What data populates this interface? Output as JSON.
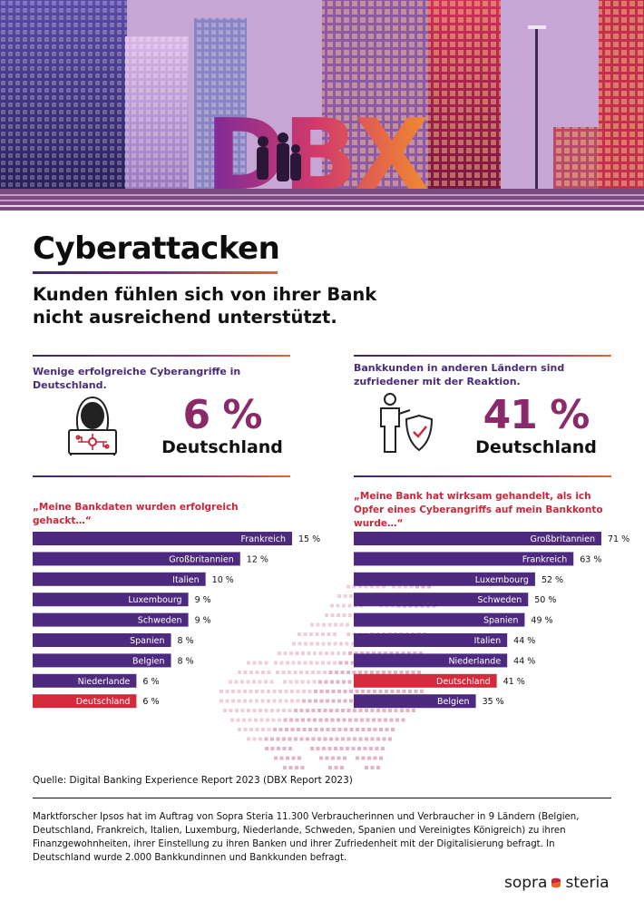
{
  "hero": {
    "logo_text": "DBX"
  },
  "title": "Cyberattacken",
  "subtitle": "Kunden fühlen sich von ihrer Bank nicht ausreichend unterstützt.",
  "left_panel": {
    "heading": "Wenige erfolgreiche Cyberangriffe in Deutschland.",
    "percent": "6 %",
    "country": "Deutschland",
    "icon": "hacker-icon",
    "quote": "„Meine Bankdaten wurden erfolgreich gehackt…“"
  },
  "right_panel": {
    "heading": "Bankkunden in anderen Ländern sind zufriedener mit der Reaktion.",
    "percent": "41 %",
    "country": "Deutschland",
    "icon": "person-shield-icon",
    "quote": "„Meine Bank hat wirksam gehandelt, als ich Opfer eines Cyberangriffs auf mein Bankkonto wurde…“"
  },
  "colors": {
    "bar": "#4d2a7f",
    "highlight": "#d42a3c",
    "accent_text": "#8a2a6a",
    "heading": "#4a2a7a"
  },
  "chart_data": [
    {
      "type": "bar",
      "orientation": "horizontal",
      "categories": [
        "Frankreich",
        "Großbritannien",
        "Italien",
        "Luxembourg",
        "Schweden",
        "Spanien",
        "Belgien",
        "Niederlande",
        "Deutschland"
      ],
      "values": [
        15,
        12,
        10,
        9,
        9,
        8,
        8,
        6,
        6
      ],
      "value_labels": [
        "15 %",
        "12 %",
        "10 %",
        "9 %",
        "9 %",
        "8 %",
        "8 %",
        "6 %",
        "6 %"
      ],
      "highlight": "Deutschland",
      "unit": "%"
    },
    {
      "type": "bar",
      "orientation": "horizontal",
      "categories": [
        "Großbritannien",
        "Frankreich",
        "Luxembourg",
        "Schweden",
        "Spanien",
        "Italien",
        "Niederlande",
        "Deutschland",
        "Belgien"
      ],
      "values": [
        71,
        63,
        52,
        50,
        49,
        44,
        44,
        41,
        35
      ],
      "value_labels": [
        "71 %",
        "63 %",
        "52 %",
        "50 %",
        "49 %",
        "44 %",
        "44 %",
        "41 %",
        "35 %"
      ],
      "highlight": "Deutschland",
      "unit": "%"
    }
  ],
  "source": "Quelle: Digital Banking Experience Report 2023 (DBX Report 2023)",
  "footnote": "Marktforscher Ipsos hat im Auftrag von Sopra Steria 11.300 Verbraucherinnen und Verbraucher in 9 Ländern (Belgien, Deutschland, Frankreich, Italien, Luxemburg, Niederlande, Schweden, Spanien und Vereinigtes Königreich) zu ihren Finanzgewohnheiten, ihrer Einstellung zu ihren Banken und ihrer Zufriedenheit mit der Digitalisierung befragt. In Deutschland wurde 2.000 Bankkundinnen und Bankkunden befragt.",
  "brand": {
    "left": "sopra",
    "right": "steria"
  }
}
